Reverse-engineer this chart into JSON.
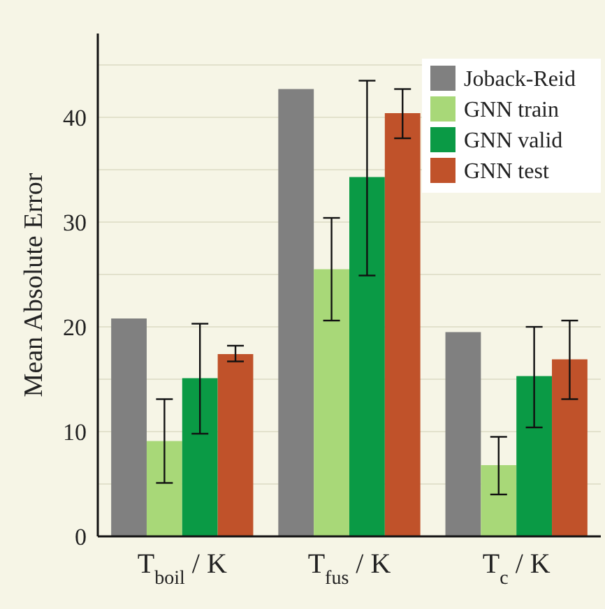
{
  "chart_data": {
    "type": "bar",
    "ylabel": "Mean Absolute Error",
    "categories": [
      "T$_{boil}$ / K",
      "T$_{fus}$ / K",
      "T$_{c}$ / K"
    ],
    "series": [
      {
        "name": "Joback-Reid",
        "color": "#808080",
        "values": [
          20.8,
          42.7,
          19.5
        ]
      },
      {
        "name": "GNN train",
        "color": "#a8d878",
        "values": [
          9.1,
          25.5,
          6.8
        ],
        "errors": [
          [
            5.1,
            13.1
          ],
          [
            20.6,
            30.4
          ],
          [
            4.0,
            9.5
          ]
        ]
      },
      {
        "name": "GNN valid",
        "color": "#0a9a45",
        "values": [
          15.1,
          34.3,
          15.3
        ],
        "errors": [
          [
            9.8,
            20.3
          ],
          [
            24.9,
            43.5
          ],
          [
            10.4,
            20.0
          ]
        ]
      },
      {
        "name": "GNN test",
        "color": "#c0522a",
        "values": [
          17.4,
          40.4,
          16.9
        ],
        "errors": [
          [
            16.7,
            18.2
          ],
          [
            38.0,
            42.7
          ],
          [
            13.1,
            20.6
          ]
        ]
      }
    ],
    "ylim": [
      0,
      48
    ],
    "yticks": [
      0,
      {
        "value": 5,
        "label": null
      },
      10,
      {
        "value": 15,
        "label": null
      },
      20,
      {
        "value": 25,
        "label": null
      },
      30,
      {
        "value": 35,
        "label": null
      },
      40,
      {
        "value": 45,
        "label": null
      }
    ],
    "grid": "y",
    "legend": "top right"
  }
}
